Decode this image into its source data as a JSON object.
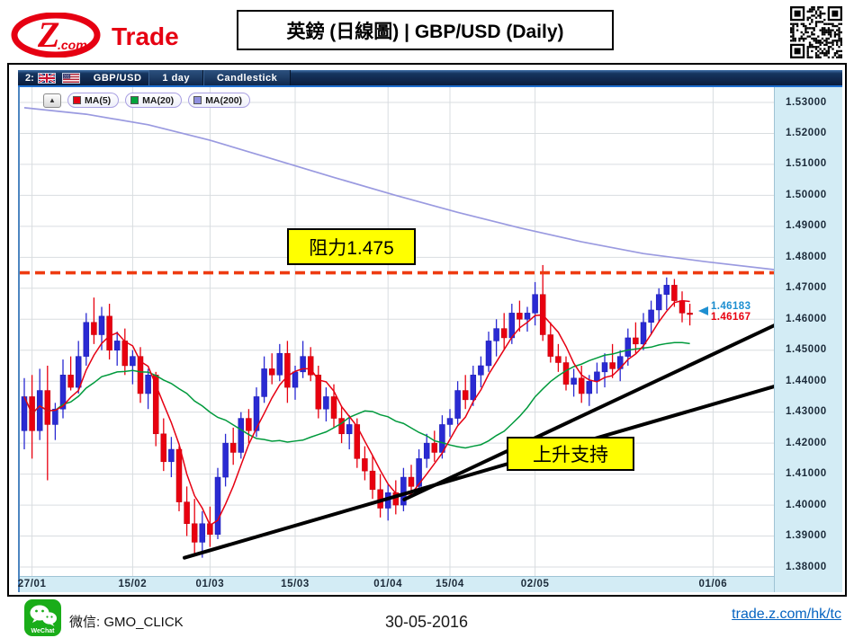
{
  "header": {
    "logo": {
      "z": "Z",
      "com": ".com",
      "trade": "Trade"
    },
    "title": "英鎊 (日線圖) | GBP/USD (Daily)"
  },
  "toolbar": {
    "prefix": "2:",
    "symbol": "GBP/USD",
    "interval": "1 day",
    "chart_type": "Candlestick"
  },
  "legend": {
    "collapse": "▲",
    "items": [
      {
        "label": "MA(5)",
        "color": "#e60012"
      },
      {
        "label": "MA(20)",
        "color": "#00a43b"
      },
      {
        "label": "MA(200)",
        "color": "#8f8fdf"
      }
    ]
  },
  "annotations": {
    "resistance_label": "阻力1.475",
    "support_label": "上升支持",
    "price_marker_blue": "1.46183",
    "price_marker_red": "1.46167"
  },
  "footer": {
    "wechat_brand": "WeChat",
    "wechat_label": "微信: GMO_CLICK",
    "date": "30-05-2016",
    "link": "trade.z.com/hk/tc"
  },
  "chart_data": {
    "type": "candlestick",
    "symbol": "GBP/USD",
    "interval": "1 day",
    "ylim": [
      1.38,
      1.53
    ],
    "y_ticks": [
      "1.53000",
      "1.52000",
      "1.51000",
      "1.50000",
      "1.49000",
      "1.48000",
      "1.47000",
      "1.46000",
      "1.45000",
      "1.44000",
      "1.43000",
      "1.42000",
      "1.41000",
      "1.40000",
      "1.39000",
      "1.38000"
    ],
    "x_ticks": [
      {
        "label": "27/01",
        "i": 1
      },
      {
        "label": "15/02",
        "i": 14
      },
      {
        "label": "01/03",
        "i": 24
      },
      {
        "label": "15/03",
        "i": 35
      },
      {
        "label": "01/04",
        "i": 47
      },
      {
        "label": "15/04",
        "i": 55
      },
      {
        "label": "02/05",
        "i": 66
      },
      {
        "label": "01/06",
        "i": 89
      }
    ],
    "resistance_level": 1.475,
    "marker_price_blue": 1.46183,
    "marker_price_red": 1.46167,
    "trendlines": [
      {
        "i1": 20.7,
        "p1": 1.383,
        "i2": 96.9,
        "p2": 1.4383
      },
      {
        "i1": 49.1,
        "p1": 1.4018,
        "i2": 96.9,
        "p2": 1.458
      }
    ],
    "ma200_anchors": [
      [
        0,
        1.5283
      ],
      [
        8,
        1.5262
      ],
      [
        16,
        1.5228
      ],
      [
        24,
        1.5178
      ],
      [
        32,
        1.5118
      ],
      [
        40,
        1.5058
      ],
      [
        48,
        1.5
      ],
      [
        56,
        1.4945
      ],
      [
        64,
        1.4895
      ],
      [
        72,
        1.485
      ],
      [
        80,
        1.4812
      ],
      [
        88,
        1.4786
      ],
      [
        97,
        1.476
      ]
    ],
    "candles": [
      [
        1.424,
        1.441,
        1.418,
        1.435
      ],
      [
        1.435,
        1.442,
        1.415,
        1.424
      ],
      [
        1.424,
        1.444,
        1.421,
        1.437
      ],
      [
        1.437,
        1.445,
        1.408,
        1.426
      ],
      [
        1.426,
        1.433,
        1.421,
        1.431
      ],
      [
        1.431,
        1.447,
        1.428,
        1.442
      ],
      [
        1.442,
        1.448,
        1.437,
        1.438
      ],
      [
        1.438,
        1.453,
        1.436,
        1.448
      ],
      [
        1.448,
        1.462,
        1.445,
        1.459
      ],
      [
        1.459,
        1.467,
        1.452,
        1.455
      ],
      [
        1.455,
        1.464,
        1.45,
        1.461
      ],
      [
        1.461,
        1.465,
        1.447,
        1.45
      ],
      [
        1.45,
        1.456,
        1.445,
        1.453
      ],
      [
        1.453,
        1.457,
        1.442,
        1.445
      ],
      [
        1.445,
        1.45,
        1.439,
        1.448
      ],
      [
        1.448,
        1.451,
        1.433,
        1.436
      ],
      [
        1.436,
        1.444,
        1.431,
        1.442
      ],
      [
        1.442,
        1.443,
        1.419,
        1.423
      ],
      [
        1.423,
        1.428,
        1.411,
        1.414
      ],
      [
        1.414,
        1.422,
        1.409,
        1.418
      ],
      [
        1.418,
        1.419,
        1.398,
        1.401
      ],
      [
        1.401,
        1.406,
        1.39,
        1.394
      ],
      [
        1.394,
        1.402,
        1.3845,
        1.388
      ],
      [
        1.388,
        1.398,
        1.383,
        1.394
      ],
      [
        1.394,
        1.3995,
        1.3865,
        1.3905
      ],
      [
        1.3905,
        1.412,
        1.389,
        1.409
      ],
      [
        1.409,
        1.423,
        1.406,
        1.42
      ],
      [
        1.42,
        1.425,
        1.413,
        1.417
      ],
      [
        1.417,
        1.43,
        1.415,
        1.428
      ],
      [
        1.428,
        1.431,
        1.42,
        1.424
      ],
      [
        1.424,
        1.438,
        1.422,
        1.435
      ],
      [
        1.435,
        1.448,
        1.433,
        1.444
      ],
      [
        1.444,
        1.449,
        1.439,
        1.442
      ],
      [
        1.442,
        1.452,
        1.44,
        1.449
      ],
      [
        1.449,
        1.453,
        1.433,
        1.438
      ],
      [
        1.438,
        1.445,
        1.434,
        1.443
      ],
      [
        1.443,
        1.453,
        1.441,
        1.448
      ],
      [
        1.448,
        1.451,
        1.44,
        1.442
      ],
      [
        1.442,
        1.445,
        1.428,
        1.431
      ],
      [
        1.431,
        1.438,
        1.427,
        1.435
      ],
      [
        1.435,
        1.439,
        1.425,
        1.428
      ],
      [
        1.428,
        1.432,
        1.42,
        1.423
      ],
      [
        1.423,
        1.429,
        1.418,
        1.426
      ],
      [
        1.426,
        1.428,
        1.412,
        1.415
      ],
      [
        1.415,
        1.419,
        1.408,
        1.411
      ],
      [
        1.411,
        1.416,
        1.402,
        1.405
      ],
      [
        1.405,
        1.41,
        1.396,
        1.399
      ],
      [
        1.399,
        1.407,
        1.395,
        1.404
      ],
      [
        1.404,
        1.408,
        1.397,
        1.4
      ],
      [
        1.4,
        1.412,
        1.398,
        1.409
      ],
      [
        1.409,
        1.413,
        1.403,
        1.406
      ],
      [
        1.406,
        1.418,
        1.404,
        1.415
      ],
      [
        1.415,
        1.423,
        1.412,
        1.42
      ],
      [
        1.42,
        1.424,
        1.414,
        1.417
      ],
      [
        1.417,
        1.429,
        1.415,
        1.426
      ],
      [
        1.426,
        1.431,
        1.422,
        1.428
      ],
      [
        1.428,
        1.44,
        1.426,
        1.437
      ],
      [
        1.437,
        1.442,
        1.431,
        1.434
      ],
      [
        1.434,
        1.445,
        1.432,
        1.442
      ],
      [
        1.442,
        1.448,
        1.438,
        1.445
      ],
      [
        1.445,
        1.456,
        1.443,
        1.453
      ],
      [
        1.453,
        1.46,
        1.448,
        1.457
      ],
      [
        1.457,
        1.462,
        1.45,
        1.454
      ],
      [
        1.454,
        1.465,
        1.452,
        1.462
      ],
      [
        1.462,
        1.466,
        1.456,
        1.46
      ],
      [
        1.46,
        1.464,
        1.456,
        1.462
      ],
      [
        1.462,
        1.472,
        1.458,
        1.468
      ],
      [
        1.468,
        1.4775,
        1.453,
        1.455
      ],
      [
        1.455,
        1.459,
        1.446,
        1.448
      ],
      [
        1.448,
        1.452,
        1.443,
        1.446
      ],
      [
        1.446,
        1.448,
        1.437,
        1.439
      ],
      [
        1.439,
        1.444,
        1.435,
        1.441
      ],
      [
        1.441,
        1.445,
        1.433,
        1.436
      ],
      [
        1.436,
        1.442,
        1.432,
        1.44
      ],
      [
        1.44,
        1.446,
        1.436,
        1.443
      ],
      [
        1.443,
        1.449,
        1.438,
        1.446
      ],
      [
        1.446,
        1.452,
        1.441,
        1.444
      ],
      [
        1.444,
        1.45,
        1.44,
        1.448
      ],
      [
        1.448,
        1.457,
        1.445,
        1.454
      ],
      [
        1.454,
        1.459,
        1.449,
        1.452
      ],
      [
        1.452,
        1.462,
        1.45,
        1.459
      ],
      [
        1.459,
        1.466,
        1.455,
        1.463
      ],
      [
        1.463,
        1.47,
        1.459,
        1.468
      ],
      [
        1.468,
        1.4735,
        1.463,
        1.471
      ],
      [
        1.471,
        1.473,
        1.464,
        1.466
      ],
      [
        1.466,
        1.469,
        1.459,
        1.462
      ],
      [
        1.462,
        1.465,
        1.458,
        1.46167
      ]
    ],
    "colors": {
      "bull": "#2a2ad2",
      "bull_stroke": "#1717b4",
      "bear": "#e8000f",
      "bear_stroke": "#bf000c",
      "ma5": "#e60012",
      "ma20": "#009a3c",
      "ma200": "#9a9ae0",
      "resistance": "#ee3b10",
      "trendline": "#000000",
      "grid": "#d9dde0",
      "axis_bg": "#d3ecf5",
      "axis_text": "#1c2b3a"
    }
  }
}
